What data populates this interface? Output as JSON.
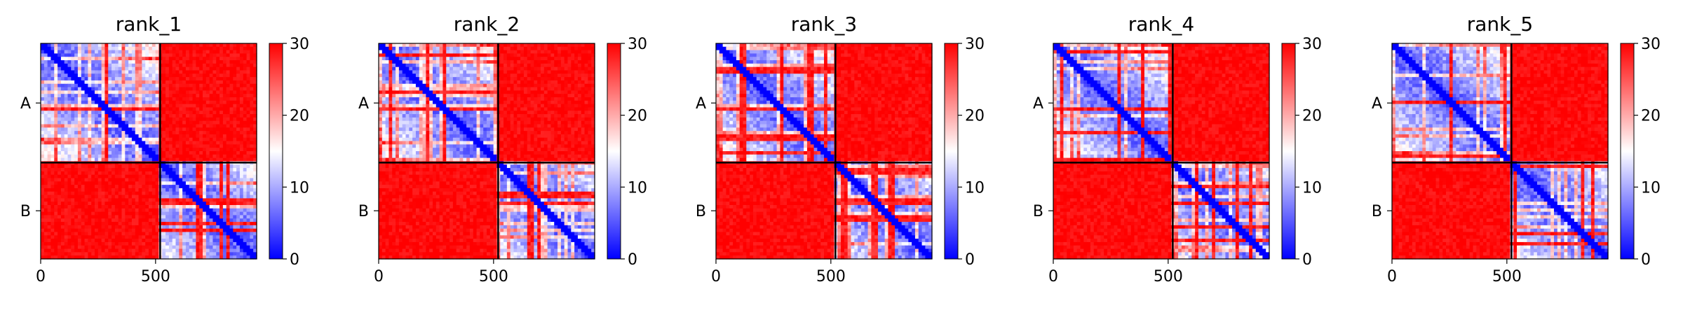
{
  "chart_data": [
    {
      "type": "heatmap",
      "title": "rank_1",
      "row_labels": [
        "A",
        "B"
      ],
      "x_ticks": [
        0,
        500
      ],
      "colorbar": {
        "ticks": [
          0,
          10,
          20,
          30
        ],
        "range": [
          0,
          30
        ],
        "colormap": "bwr",
        "colors": [
          "#0000ff",
          "#ffffff",
          "#ff0000"
        ]
      },
      "blocks": {
        "A": [
          0,
          520
        ],
        "B": [
          520,
          940
        ]
      },
      "extent": [
        0,
        940
      ]
    },
    {
      "type": "heatmap",
      "title": "rank_2",
      "row_labels": [
        "A",
        "B"
      ],
      "x_ticks": [
        0,
        500
      ],
      "colorbar": {
        "ticks": [
          0,
          10,
          20,
          30
        ],
        "range": [
          0,
          30
        ],
        "colormap": "bwr",
        "colors": [
          "#0000ff",
          "#ffffff",
          "#ff0000"
        ]
      },
      "blocks": {
        "A": [
          0,
          520
        ],
        "B": [
          520,
          940
        ]
      },
      "extent": [
        0,
        940
      ]
    },
    {
      "type": "heatmap",
      "title": "rank_3",
      "row_labels": [
        "A",
        "B"
      ],
      "x_ticks": [
        0,
        500
      ],
      "colorbar": {
        "ticks": [
          0,
          10,
          20,
          30
        ],
        "range": [
          0,
          30
        ],
        "colormap": "bwr",
        "colors": [
          "#0000ff",
          "#ffffff",
          "#ff0000"
        ]
      },
      "blocks": {
        "A": [
          0,
          520
        ],
        "B": [
          520,
          940
        ]
      },
      "extent": [
        0,
        940
      ]
    },
    {
      "type": "heatmap",
      "title": "rank_4",
      "row_labels": [
        "A",
        "B"
      ],
      "x_ticks": [
        0,
        500
      ],
      "colorbar": {
        "ticks": [
          0,
          10,
          20,
          30
        ],
        "range": [
          0,
          30
        ],
        "colormap": "bwr",
        "colors": [
          "#0000ff",
          "#ffffff",
          "#ff0000"
        ]
      },
      "blocks": {
        "A": [
          0,
          520
        ],
        "B": [
          520,
          940
        ]
      },
      "extent": [
        0,
        940
      ]
    },
    {
      "type": "heatmap",
      "title": "rank_5",
      "row_labels": [
        "A",
        "B"
      ],
      "x_ticks": [
        0,
        500
      ],
      "colorbar": {
        "ticks": [
          0,
          10,
          20,
          30
        ],
        "range": [
          0,
          30
        ],
        "colormap": "bwr",
        "colors": [
          "#0000ff",
          "#ffffff",
          "#ff0000"
        ]
      },
      "blocks": {
        "A": [
          0,
          520
        ],
        "B": [
          520,
          940
        ]
      },
      "extent": [
        0,
        940
      ]
    }
  ]
}
